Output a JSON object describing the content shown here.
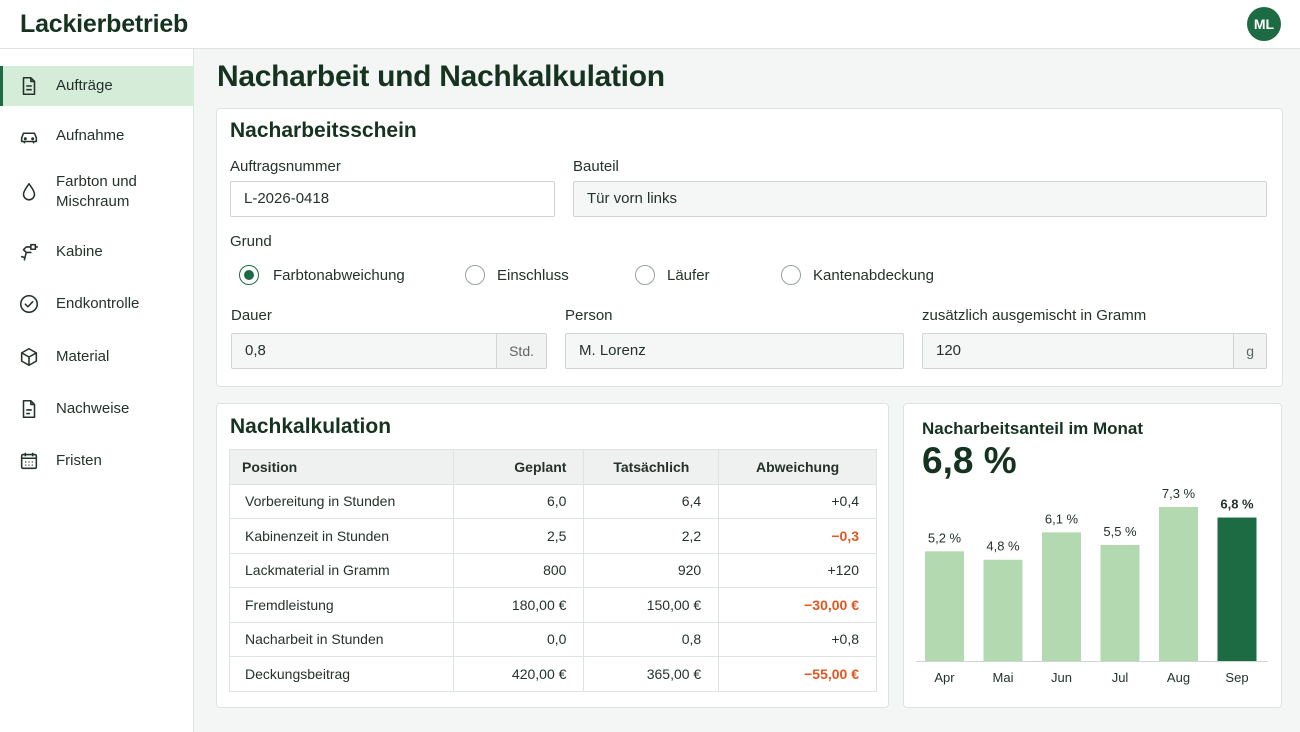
{
  "app": {
    "title": "Lackierbetrieb",
    "user_initials": "ML"
  },
  "sidebar": {
    "items": [
      {
        "label": "Aufträge",
        "icon": "document-icon",
        "active": true
      },
      {
        "label": "Aufnahme",
        "icon": "car-icon"
      },
      {
        "label": "Farbton und Mischraum",
        "icon": "droplet-icon"
      },
      {
        "label": "Kabine",
        "icon": "spray-gun-icon"
      },
      {
        "label": "Endkontrolle",
        "icon": "check-circle-icon"
      },
      {
        "label": "Material",
        "icon": "box-icon"
      },
      {
        "label": "Nachweise",
        "icon": "file-icon"
      },
      {
        "label": "Fristen",
        "icon": "calendar-icon"
      }
    ]
  },
  "page": {
    "title": "Nacharbeit und Nachkalkulation"
  },
  "form": {
    "title": "Nacharbeitsschein",
    "order_number": {
      "label": "Auftragsnummer",
      "value": "L-2026-0418"
    },
    "part": {
      "label": "Bauteil",
      "value": "Tür vorn links"
    },
    "reason": {
      "label": "Grund",
      "options": [
        "Farbtonabweichung",
        "Einschluss",
        "Läufer",
        "Kantenabdeckung"
      ],
      "selected": "Farbtonabweichung"
    },
    "duration": {
      "label": "Dauer",
      "value": "0,8",
      "unit": "Std."
    },
    "person": {
      "label": "Person",
      "value": "M. Lorenz"
    },
    "extra_mix": {
      "label": "zusätzlich ausgemischt in Gramm",
      "value": "120",
      "unit": "g"
    }
  },
  "calc": {
    "title": "Nachkalkulation",
    "headers": [
      "Position",
      "Geplant",
      "Tatsächlich",
      "Abweichung"
    ],
    "rows": [
      {
        "position": "Vorbereitung in Stunden",
        "planned": "6,0",
        "actual": "6,4",
        "deviation": "+0,4",
        "negative": false
      },
      {
        "position": "Kabinenzeit in Stunden",
        "planned": "2,5",
        "actual": "2,2",
        "deviation": "−0,3",
        "negative": true
      },
      {
        "position": "Lackmaterial in Gramm",
        "planned": "800",
        "actual": "920",
        "deviation": "+120",
        "negative": false
      },
      {
        "position": "Fremdleistung",
        "planned": "180,00 €",
        "actual": "150,00 €",
        "deviation": "−30,00 €",
        "negative": true
      },
      {
        "position": "Nacharbeit in Stunden",
        "planned": "0,0",
        "actual": "0,8",
        "deviation": "+0,8",
        "negative": false
      },
      {
        "position": "Deckungsbeitrag",
        "planned": "420,00 €",
        "actual": "365,00 €",
        "deviation": "−55,00 €",
        "negative": true
      }
    ]
  },
  "colors": {
    "accent": "#1d6b43",
    "bar": "#b3d9b0",
    "negative": "#e0581f"
  },
  "chart_data": {
    "type": "bar",
    "title": "Nacharbeitsanteil im Monat",
    "headline_value": "6,8 %",
    "categories": [
      "Apr",
      "Mai",
      "Jun",
      "Jul",
      "Aug",
      "Sep"
    ],
    "values": [
      5.2,
      4.8,
      6.1,
      5.5,
      7.3,
      6.8
    ],
    "value_labels": [
      "5,2 %",
      "4,8 %",
      "6,1 %",
      "5,5 %",
      "7,3 %",
      "6,8 %"
    ],
    "highlight_index": 5,
    "ylim": [
      0,
      7.3
    ],
    "grid": false,
    "legend": "none"
  }
}
